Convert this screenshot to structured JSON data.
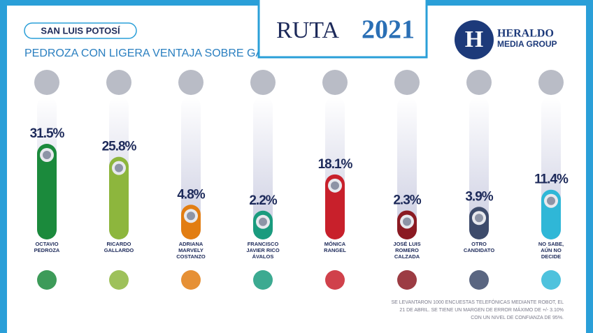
{
  "header": {
    "region": "SAN LUIS POTOSÍ",
    "subtitle": "PEDROZA CON LIGERA VENTAJA SOBRE GALLARDO",
    "logo_left": "RUTA",
    "logo_right": "2021",
    "brand_mark": "H",
    "brand_name": "HERALDO",
    "brand_sub": "MEDIA GROUP"
  },
  "chart_data": {
    "type": "bar",
    "categories": [
      "OCTAVIO\nPEDROZA",
      "RICARDO\nGALLARDO",
      "ADRIANA\nMARVELY\nCOSTANZO",
      "FRANCISCO\nJAVIER RICO\nÁVALOS",
      "MÓNICA\nRANGEL",
      "JOSÉ LUIS\nROMERO\nCALZADA",
      "OTRO\nCANDIDATO",
      "NO SABE,\nAÚN NO\nDECIDE"
    ],
    "values": [
      31.5,
      25.8,
      4.8,
      2.2,
      18.1,
      2.3,
      3.9,
      11.4
    ],
    "value_labels": [
      "31.5%",
      "25.8%",
      "4.8%",
      "2.2%",
      "18.1%",
      "2.3%",
      "3.9%",
      "11.4%"
    ],
    "colors": [
      "#1b8a3c",
      "#8db63d",
      "#e27d12",
      "#1a9b7e",
      "#c8202b",
      "#8b1a22",
      "#3d4b6b",
      "#2fb7d7"
    ]
  },
  "footnote": [
    "SE LEVANTARON 1000 ENCUESTAS TELEFÓNICAS MEDIANTE ROBOT, EL",
    "21 DE ABRIL. SE TIENE UN MARGEN DE ERROR MÁXIMO DE +/- 3.10%",
    "CON UN NIVEL DE CONFIANZA DE 95%."
  ]
}
